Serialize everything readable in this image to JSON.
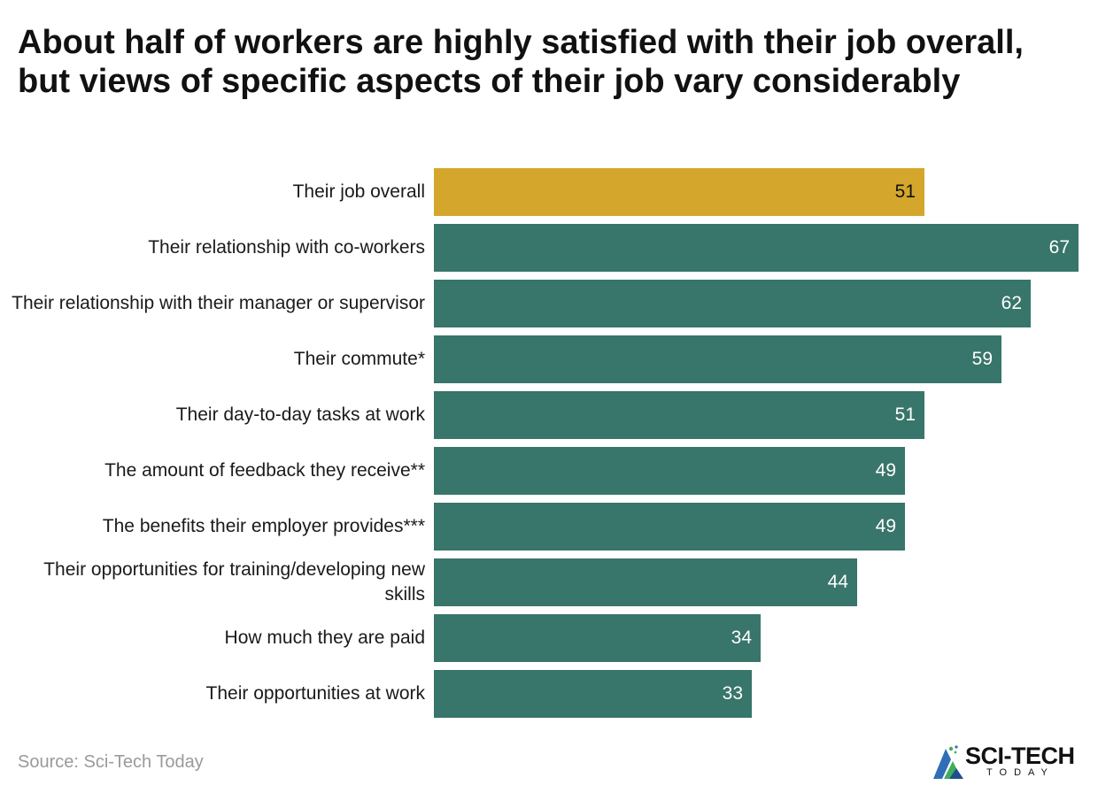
{
  "chart_data": {
    "type": "bar",
    "orientation": "horizontal",
    "title": "About half of workers are highly satisfied with their job overall, but views of specific aspects of their job vary considerably",
    "categories": [
      "Their job overall",
      "Their relationship with co-workers",
      "Their relationship with their manager or supervisor",
      "Their commute*",
      "Their day-to-day tasks at work",
      "The amount of feedback they receive**",
      "The benefits their employer provides***",
      "Their opportunities for training/developing new skills",
      "How much they are paid",
      "Their opportunities at work"
    ],
    "values": [
      51,
      67,
      62,
      59,
      51,
      49,
      49,
      44,
      34,
      33
    ],
    "colors": [
      "#d4a72c",
      "#38756a",
      "#38756a",
      "#38756a",
      "#38756a",
      "#38756a",
      "#38756a",
      "#38756a",
      "#38756a",
      "#38756a"
    ],
    "xlim": [
      0,
      67
    ],
    "grid": false,
    "legend": false
  },
  "source": "Source: Sci-Tech Today",
  "logo": {
    "main": "SCI-TECH",
    "sub": "TODAY",
    "icon": "sci-tech-logo-icon"
  }
}
